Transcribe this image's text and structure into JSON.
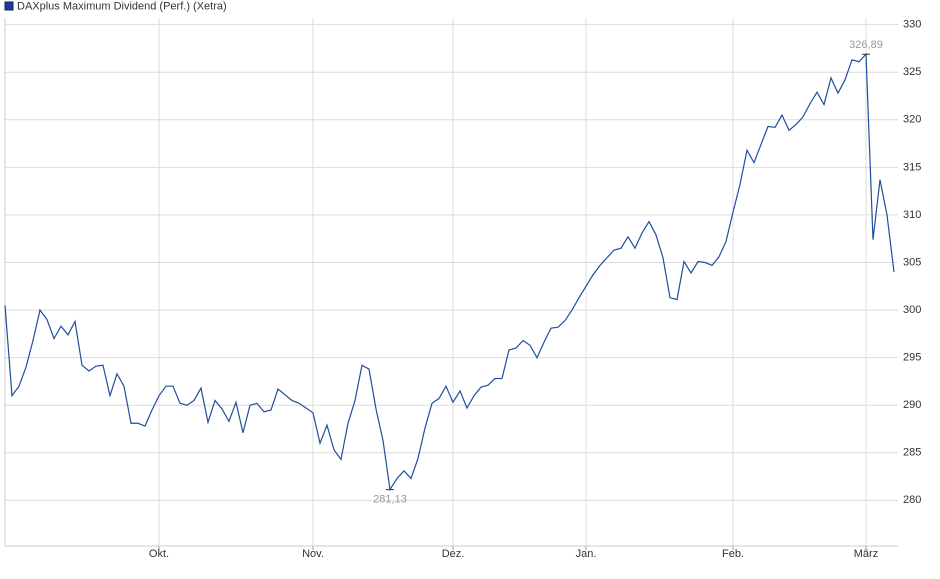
{
  "chart_data": {
    "type": "line",
    "categories": [
      null,
      null,
      null,
      null,
      null,
      null,
      null,
      null,
      null,
      null,
      null,
      null,
      null,
      null,
      null,
      null,
      null,
      null,
      null,
      null,
      null,
      null,
      "Okt.",
      null,
      null,
      null,
      null,
      null,
      null,
      null,
      null,
      null,
      null,
      null,
      null,
      null,
      null,
      null,
      null,
      null,
      null,
      null,
      null,
      null,
      "Nov.",
      null,
      null,
      null,
      null,
      null,
      null,
      null,
      null,
      null,
      null,
      null,
      null,
      null,
      null,
      null,
      null,
      null,
      null,
      null,
      "Dez.",
      null,
      null,
      null,
      null,
      null,
      null,
      null,
      null,
      null,
      null,
      null,
      null,
      null,
      null,
      null,
      null,
      null,
      null,
      "Jan.",
      null,
      null,
      null,
      null,
      null,
      null,
      null,
      null,
      null,
      null,
      null,
      null,
      null,
      null,
      null,
      null,
      null,
      null,
      null,
      null,
      "Feb.",
      null,
      null,
      null,
      null,
      null,
      null,
      null,
      null,
      null,
      null,
      null,
      null,
      null,
      null,
      null,
      null,
      null,
      null,
      "März",
      null,
      null,
      null,
      null
    ],
    "series": [
      {
        "name": "DAXplus Maximum Dividend (Perf.) (Xetra)",
        "color": "#1f4e9c",
        "values": [
          300.5,
          291.0,
          292,
          294,
          296.8,
          300.0,
          299,
          297,
          298.3,
          297.4,
          298.8,
          294.2,
          293.6,
          294.1,
          294.2,
          291,
          293.3,
          292,
          288.1,
          288.1,
          287.8,
          289.5,
          291,
          292,
          292,
          290.2,
          290,
          290.5,
          291.8,
          288.2,
          290.5,
          289.6,
          288.3,
          290.3,
          287.1,
          290,
          290.2,
          289.3,
          289.5,
          291.7,
          291.1,
          290.5,
          290.2,
          289.7,
          289.2,
          286,
          287.9,
          285.3,
          284.3,
          288.1,
          290.5,
          294.2,
          293.8,
          289.6,
          286.3,
          281.13,
          282.3,
          283.1,
          282.3,
          284.4,
          287.6,
          290.2,
          290.7,
          292,
          290.3,
          291.5,
          289.7,
          291,
          291.9,
          292.1,
          292.8,
          292.8,
          295.8,
          296,
          296.8,
          296.3,
          295,
          296.6,
          298.1,
          298.2,
          298.9,
          300,
          301.3,
          302.5,
          303.7,
          304.7,
          305.5,
          306.3,
          306.5,
          307.7,
          306.5,
          308.1,
          309.3,
          307.9,
          305.5,
          301.3,
          301.1,
          305.1,
          303.9,
          305.1,
          305,
          304.7,
          305.6,
          307.2,
          310.3,
          313.2,
          316.8,
          315.5,
          317.4,
          319.3,
          319.2,
          320.5,
          318.9,
          319.5,
          320.3,
          321.7,
          322.9,
          321.6,
          324.4,
          322.8,
          324.2,
          326.3,
          326.1,
          326.89,
          307.4,
          313.7,
          310,
          304
        ],
        "value_labels": [
          null,
          null,
          null,
          null,
          null,
          null,
          null,
          null,
          null,
          null,
          null,
          null,
          null,
          null,
          null,
          null,
          null,
          null,
          null,
          null,
          null,
          null,
          null,
          null,
          null,
          null,
          null,
          null,
          null,
          null,
          null,
          null,
          null,
          null,
          null,
          null,
          null,
          null,
          null,
          null,
          null,
          null,
          null,
          null,
          null,
          null,
          null,
          null,
          null,
          null,
          null,
          null,
          null,
          null,
          null,
          "281,13",
          null,
          null,
          null,
          null,
          null,
          null,
          null,
          null,
          null,
          null,
          null,
          null,
          null,
          null,
          null,
          null,
          null,
          null,
          null,
          null,
          null,
          null,
          null,
          null,
          null,
          null,
          null,
          null,
          null,
          null,
          null,
          null,
          null,
          null,
          null,
          null,
          null,
          null,
          null,
          null,
          null,
          null,
          null,
          null,
          null,
          null,
          null,
          null,
          null,
          null,
          null,
          null,
          null,
          null,
          null,
          null,
          null,
          null,
          null,
          null,
          null,
          null,
          null,
          null,
          null,
          null,
          null,
          "326,89",
          null,
          null,
          null,
          null
        ]
      }
    ],
    "ylim": [
      275.2,
      330.7
    ],
    "yticks": [
      280,
      285,
      290,
      295,
      300,
      305,
      310,
      315,
      320,
      325,
      330
    ],
    "grid": true,
    "legend": "top-left"
  }
}
